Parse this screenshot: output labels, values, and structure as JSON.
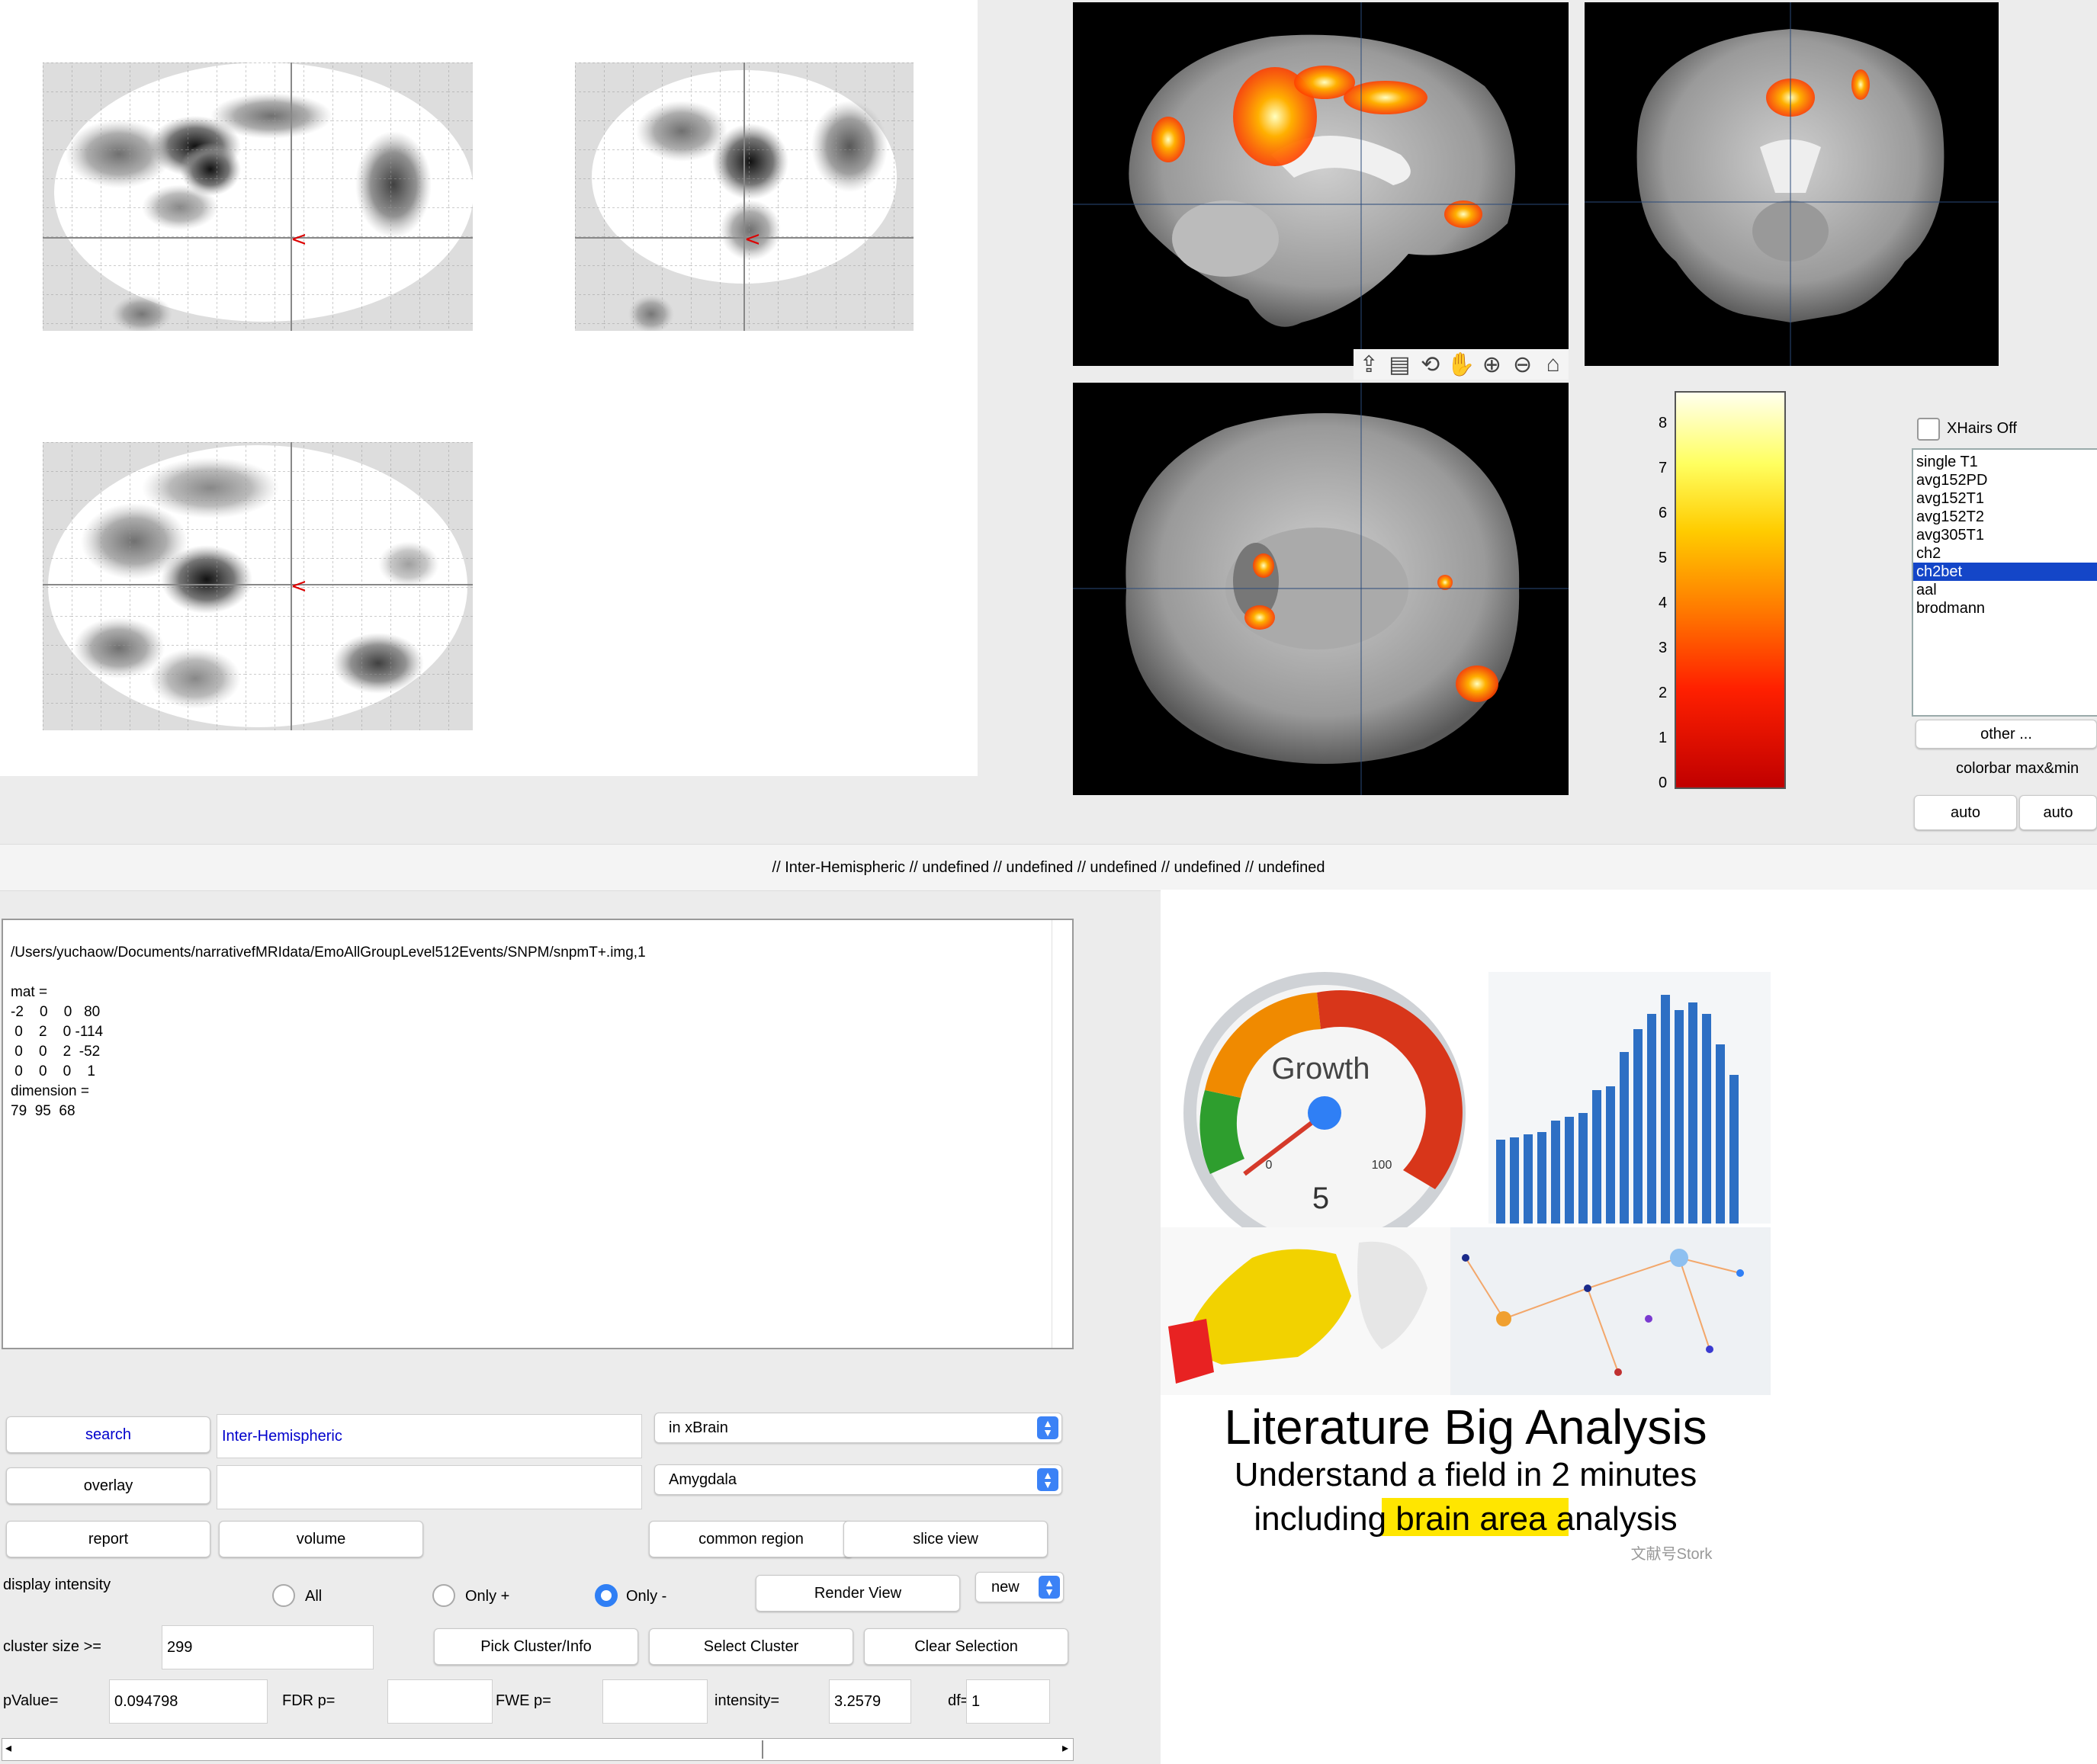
{
  "statusbar": {
    "text": "// Inter-Hemispheric // undefined // undefined // undefined // undefined // undefined"
  },
  "toolbar": {
    "icons": [
      "export-icon",
      "brush-icon",
      "rotate-3d-icon",
      "pan-hand-icon",
      "zoom-in-icon",
      "zoom-out-icon",
      "home-icon"
    ],
    "glyphs": [
      "⇪",
      "▤",
      "⟲",
      "✋",
      "⊕",
      "⊖",
      "⌂"
    ]
  },
  "colorbar": {
    "ticks": [
      "0",
      "1",
      "2",
      "3",
      "4",
      "5",
      "6",
      "7",
      "8"
    ]
  },
  "controls": {
    "xhairs_label": "XHairs Off",
    "templates": [
      "single T1",
      "avg152PD",
      "avg152T1",
      "avg152T2",
      "avg305T1",
      "ch2",
      "ch2bet",
      "aal",
      "brodmann"
    ],
    "selected_template": "ch2bet",
    "other_label": "other ...",
    "colorbar_label": "colorbar max&min",
    "auto_min": "auto",
    "auto_max": "auto"
  },
  "console": {
    "text": "/Users/yuchaow/Documents/narrativefMRIdata/EmoAllGroupLevel512Events/SNPM/snpmT+.img,1\n\nmat =\n-2    0    0   80\n 0    2    0 -114\n 0    0    2  -52\n 0    0    0    1\ndimension =\n79  95  68"
  },
  "search": {
    "button": "search",
    "value": "Inter-Hemispheric",
    "scope": "in xBrain"
  },
  "overlay": {
    "button": "overlay",
    "value": "",
    "region": "Amygdala"
  },
  "buttons": {
    "report": "report",
    "volume": "volume",
    "common_region": "common region",
    "slice_view": "slice view",
    "render_view": "Render View",
    "new": "new",
    "pick_cluster": "Pick Cluster/Info",
    "select_cluster": "Select Cluster",
    "clear_selection": "Clear Selection"
  },
  "display": {
    "label": "display intensity",
    "all": "All",
    "only_plus": "Only +",
    "only_minus": "Only -"
  },
  "cluster": {
    "label": "cluster size >=",
    "value": "299"
  },
  "stats": {
    "pvalue_label": "pValue=",
    "pvalue": "0.094798",
    "fdr_label": "FDR p=",
    "fdr": "",
    "fwe_label": "FWE p=",
    "fwe": "",
    "intensity_label": "intensity=",
    "intensity": "3.2579",
    "df_label": "df=",
    "df": "1"
  },
  "promo": {
    "gauge_title": "Growth",
    "gauge_value": "5",
    "gauge_min": "0",
    "gauge_max": "100",
    "title": "Literature Big Analysis",
    "line1": "Understand a field in 2 minutes",
    "line2_pre": "including ",
    "line2_hl": "brain area",
    "line2_post": " analysis",
    "watermark": "文献号Stork"
  },
  "colors": {
    "accent": "#2f7ff5",
    "selection": "#1446c8",
    "search_text": "#0000cc"
  }
}
